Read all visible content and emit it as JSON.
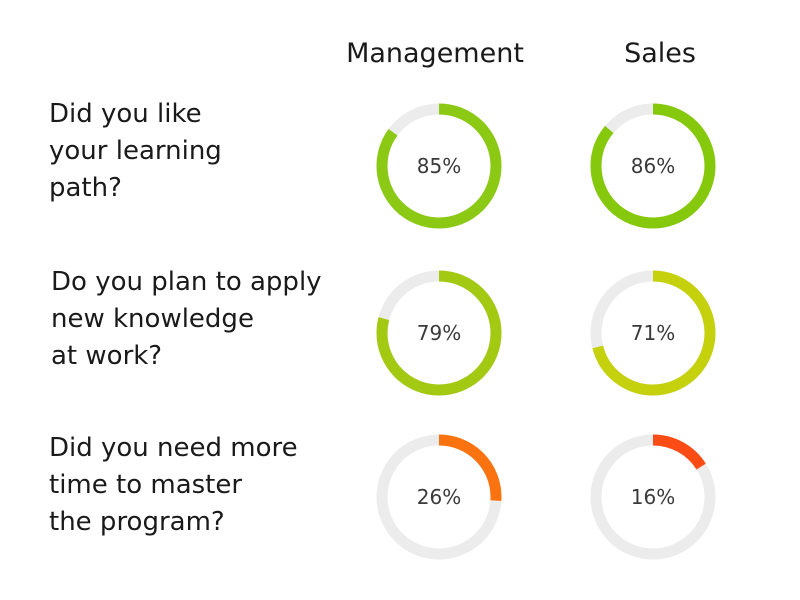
{
  "chart_data": {
    "type": "pie",
    "subtype": "donut-grid",
    "columns": [
      "Management",
      "Sales"
    ],
    "rows": [
      {
        "question_lines": [
          "Did you like",
          "your learning",
          "path?"
        ],
        "values": [
          85,
          86
        ],
        "labels": [
          "85%",
          "86%"
        ],
        "colors": [
          "#8cc914",
          "#86c80c"
        ]
      },
      {
        "question_lines": [
          "Do you plan to apply",
          "new knowledge",
          "at work?"
        ],
        "values": [
          79,
          71
        ],
        "labels": [
          "79%",
          "71%"
        ],
        "colors": [
          "#a3c913",
          "#c5d10d"
        ]
      },
      {
        "question_lines": [
          "Did you need more",
          "time to master",
          "the program?"
        ],
        "values": [
          26,
          16
        ],
        "labels": [
          "26%",
          "16%"
        ],
        "colors": [
          "#fa7310",
          "#fa4c14"
        ]
      }
    ],
    "track_color": "#ececec",
    "value_range": [
      0,
      100
    ],
    "direction": "clockwise-from-top",
    "legend": "none",
    "grid": false
  }
}
